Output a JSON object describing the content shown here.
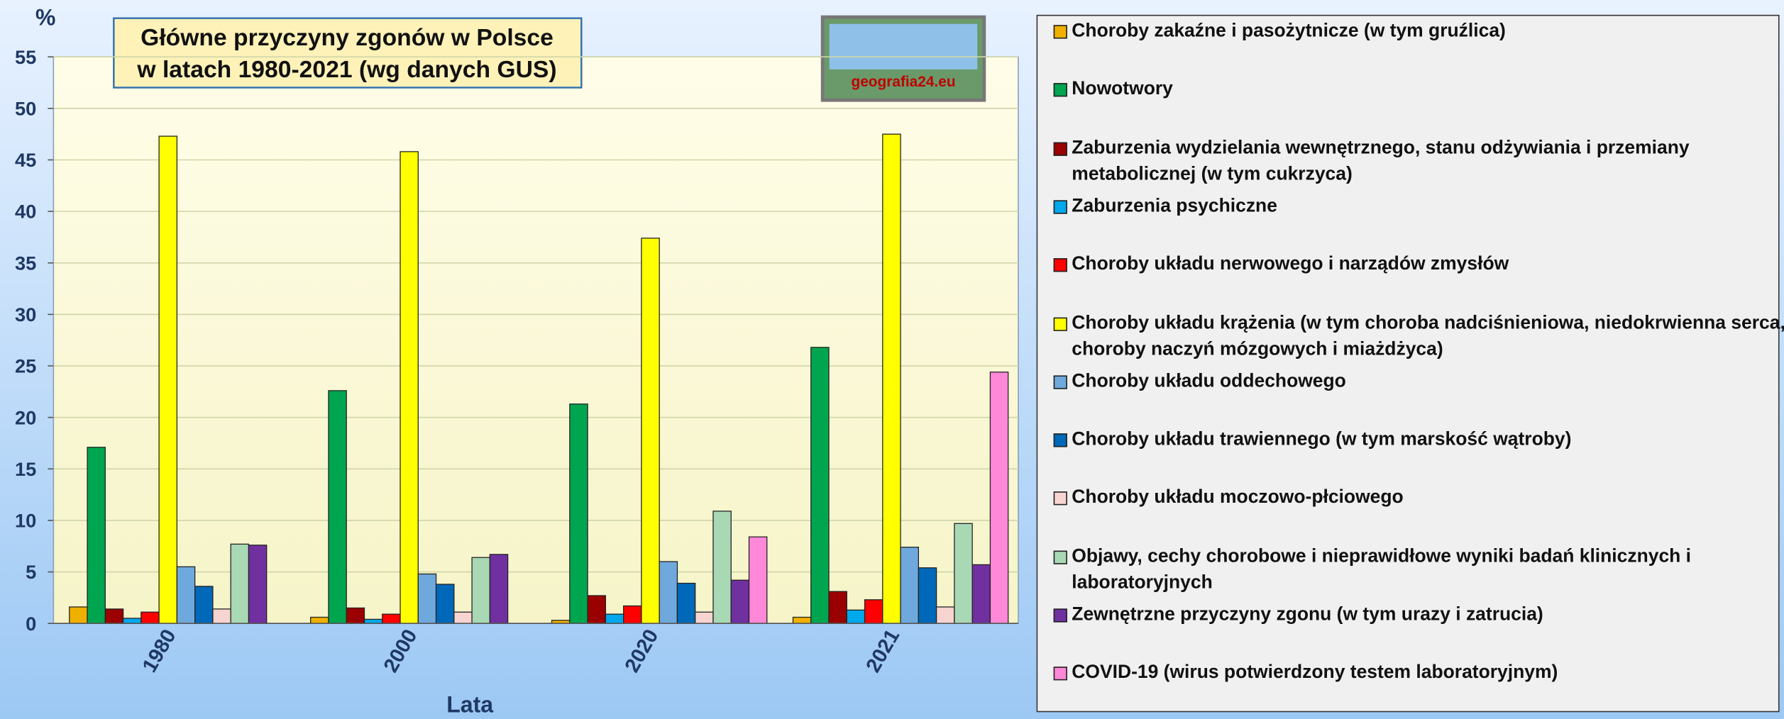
{
  "chart_data": {
    "type": "bar",
    "title": [
      "Główne przyczyny zgonów w Polsce",
      "w latach 1980-2021 (wg danych GUS)"
    ],
    "logo_text": "geografia24.eu",
    "y_axis_label": "%",
    "x_axis_label": "Lata",
    "categories": [
      "1980",
      "2000",
      "2020",
      "2021"
    ],
    "ylim": [
      0,
      55
    ],
    "yticks": [
      0,
      5,
      10,
      15,
      20,
      25,
      30,
      35,
      40,
      45,
      50,
      55
    ],
    "grid": true,
    "series": [
      {
        "name": "Choroby zakaźne i pasożytnicze (w tym gruźlica)",
        "color": "#f0b000",
        "values": [
          1.6,
          0.6,
          0.3,
          0.6
        ]
      },
      {
        "name": "Nowotwory",
        "color": "#00a550",
        "values": [
          17.1,
          22.6,
          21.3,
          26.8
        ]
      },
      {
        "name": "Zaburzenia wydzielania wewnętrznego, stanu odżywiania i przemiany metabolicznej (w tym cukrzyca)",
        "color": "#9b0000",
        "values": [
          1.4,
          1.5,
          2.7,
          3.1
        ]
      },
      {
        "name": "Zaburzenia psychiczne",
        "color": "#00a8ec",
        "values": [
          0.5,
          0.4,
          0.9,
          1.3
        ]
      },
      {
        "name": "Choroby układu nerwowego i narządów zmysłów",
        "color": "#ff0000",
        "values": [
          1.1,
          0.9,
          1.7,
          2.3
        ]
      },
      {
        "name": "Choroby układu krążenia (w tym choroba nadciśnieniowa, niedokrwienna serca, choroby naczyń mózgowych i miażdżyca)",
        "color": "#ffff00",
        "values": [
          47.3,
          45.8,
          37.4,
          47.5
        ]
      },
      {
        "name": "Choroby układu oddechowego",
        "color": "#6fa8dc",
        "values": [
          5.5,
          4.8,
          6.0,
          7.4
        ]
      },
      {
        "name": "Choroby układu trawiennego (w tym marskość wątroby)",
        "color": "#0068b8",
        "values": [
          3.6,
          3.8,
          3.9,
          5.4
        ]
      },
      {
        "name": "Choroby układu moczowo-płciowego",
        "color": "#f8d4d0",
        "values": [
          1.4,
          1.1,
          1.1,
          1.6
        ]
      },
      {
        "name": "Objawy, cechy chorobowe i nieprawidłowe wyniki badań klinicznych i laboratoryjnych",
        "color": "#a8d8b4",
        "values": [
          7.7,
          6.4,
          10.9,
          9.7
        ]
      },
      {
        "name": "Zewnętrzne przyczyny zgonu (w tym urazy i zatrucia)",
        "color": "#7030a0",
        "values": [
          7.6,
          6.7,
          4.2,
          5.7
        ]
      },
      {
        "name": "COVID-19 (wirus potwierdzony testem laboratoryjnym)",
        "color": "#ff88d8",
        "values": [
          null,
          null,
          8.4,
          24.4
        ]
      }
    ]
  }
}
